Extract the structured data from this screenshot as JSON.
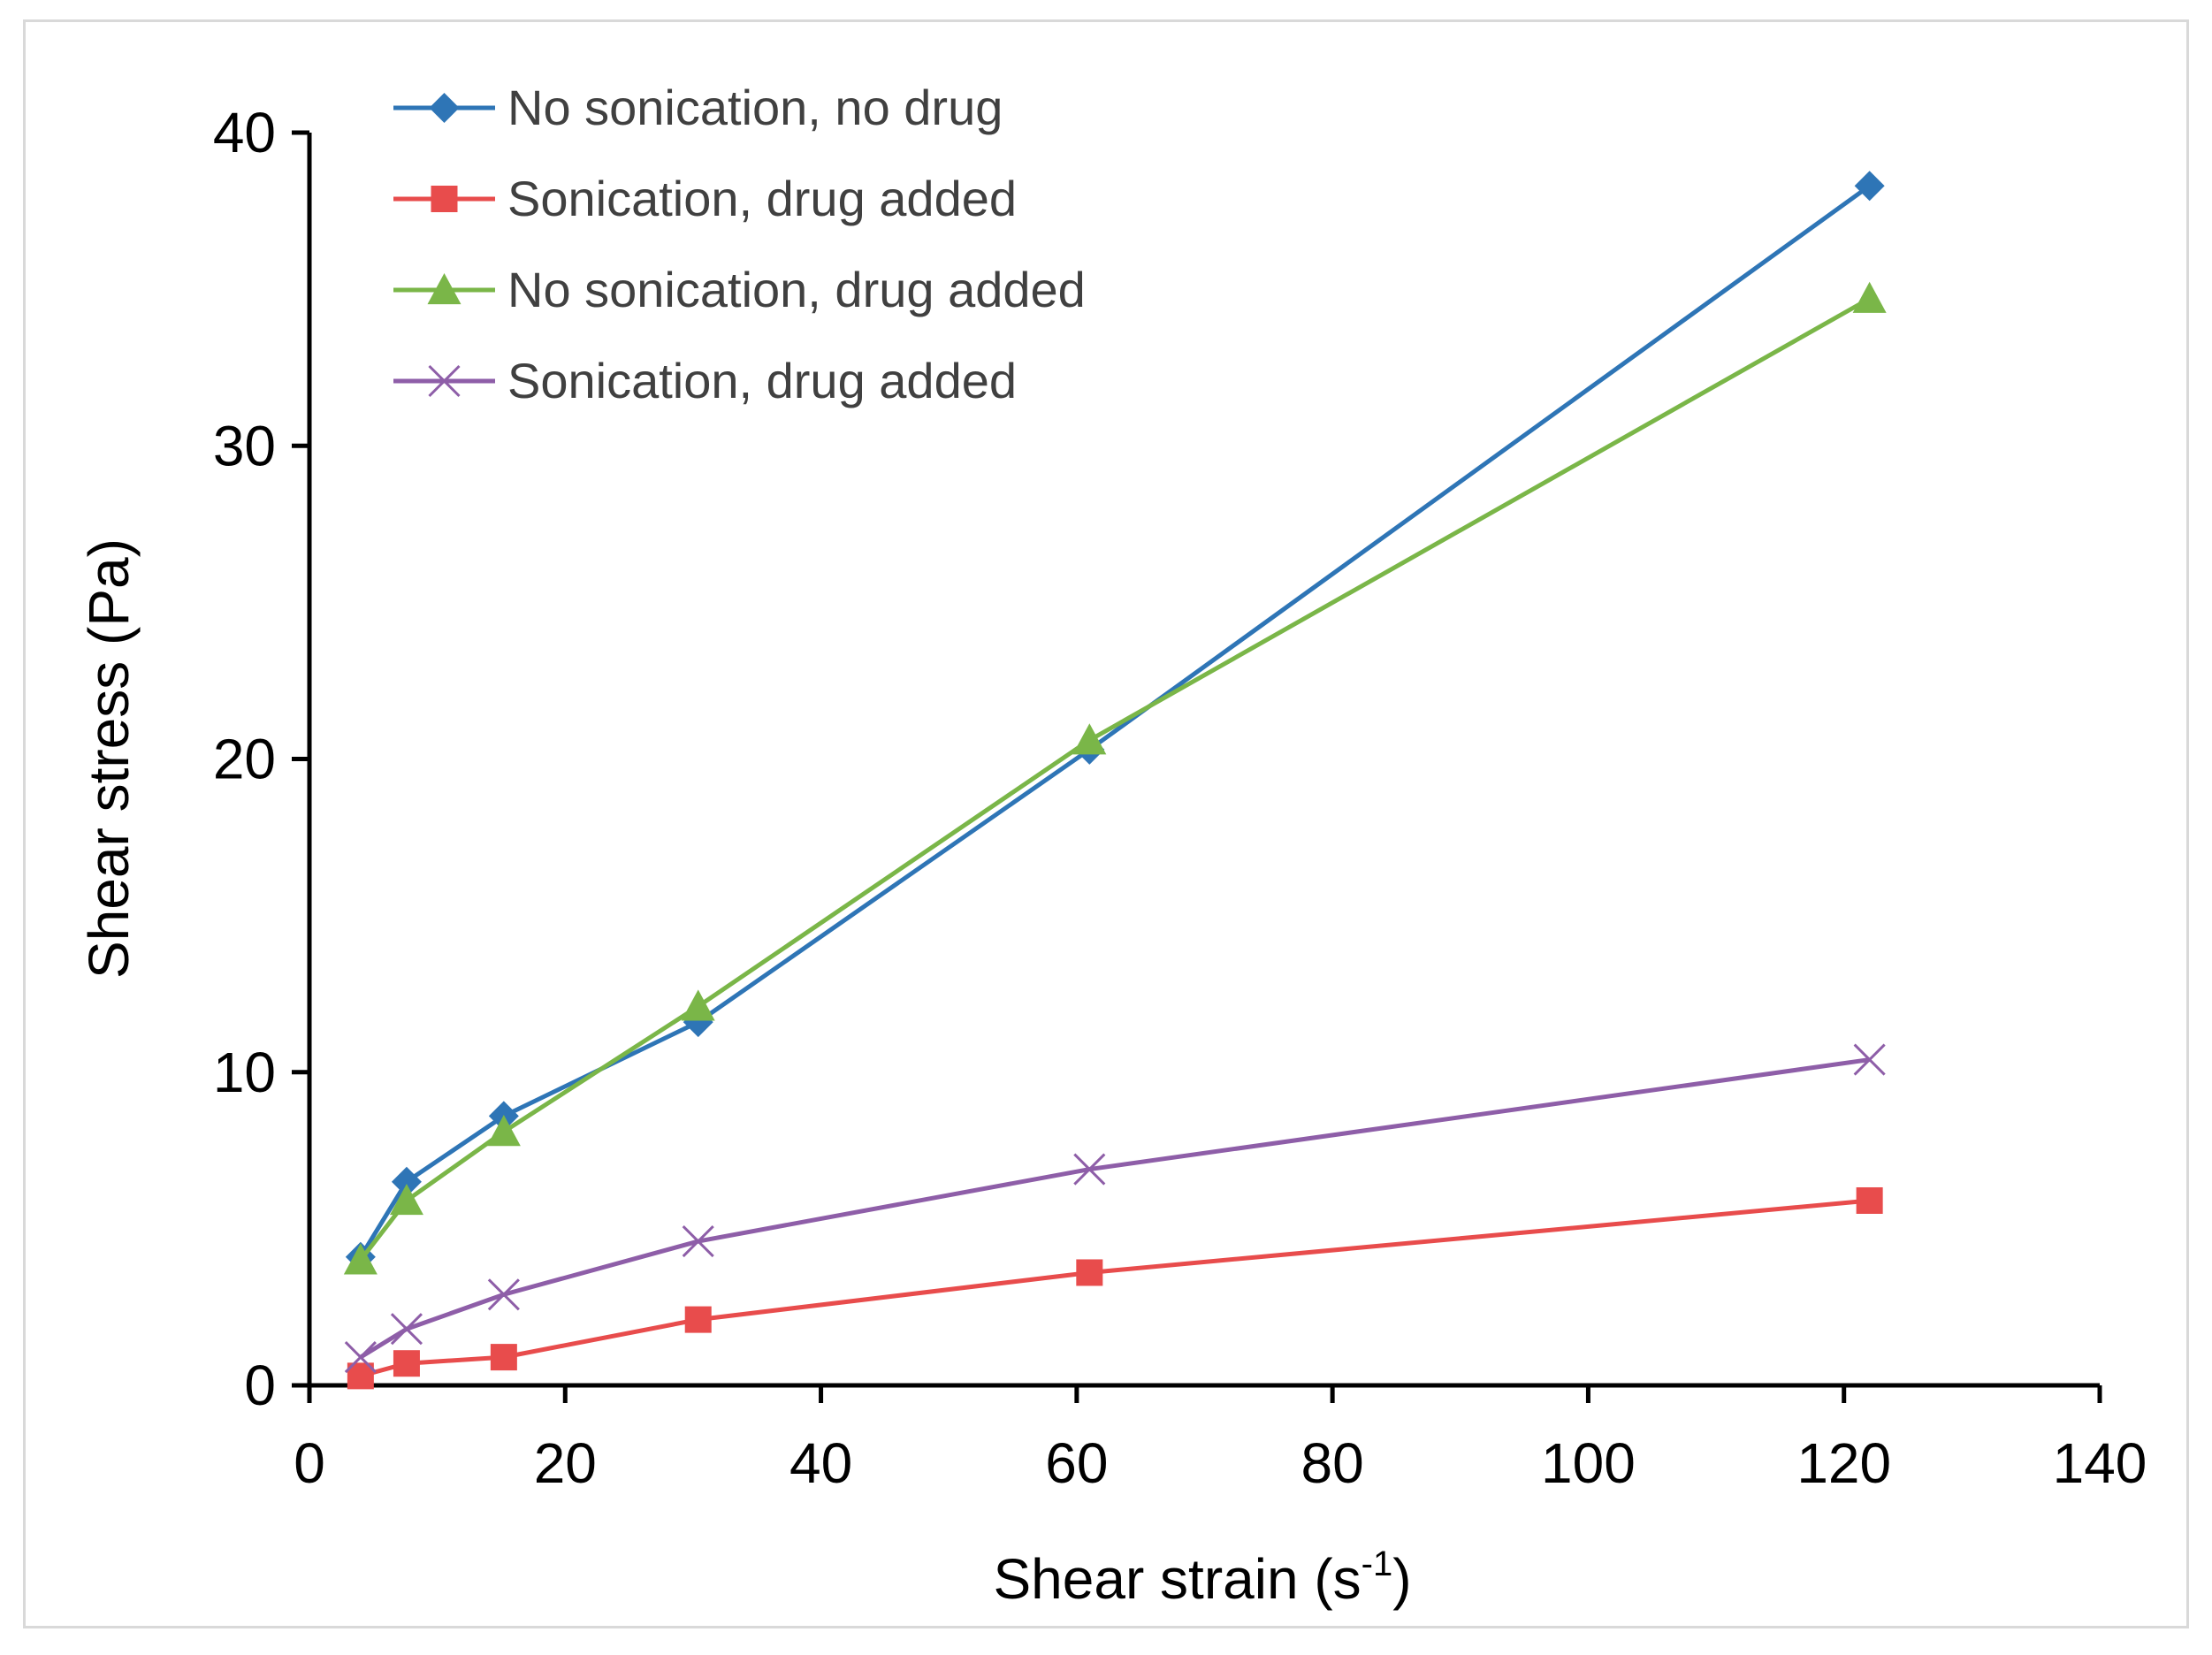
{
  "chart_data": {
    "type": "line",
    "title": "",
    "xlabel": "Shear strain (s",
    "xlabel_sup": "-1",
    "xlabel_close": ")",
    "ylabel": "Shear stress (Pa)",
    "xlim": [
      0,
      140
    ],
    "ylim": [
      0,
      40
    ],
    "xticks": [
      0,
      20,
      40,
      60,
      80,
      100,
      120,
      140
    ],
    "yticks": [
      0,
      10,
      20,
      30,
      40
    ],
    "grid": false,
    "legend_position": "top-left",
    "x": [
      4,
      7.6,
      15.2,
      30.4,
      61,
      122
    ],
    "series": [
      {
        "name": "No sonication, no drug",
        "color": "#2e75b6",
        "marker": "diamond",
        "values": [
          4.1,
          6.5,
          8.6,
          11.6,
          20.3,
          38.3
        ]
      },
      {
        "name": "Sonication, drug added",
        "color": "#e84c4c",
        "marker": "square",
        "values": [
          0.3,
          0.7,
          0.9,
          2.1,
          3.6,
          5.9
        ]
      },
      {
        "name": "No sonication, drug added",
        "color": "#7ab648",
        "marker": "triangle",
        "values": [
          4.0,
          5.9,
          8.1,
          12.1,
          20.6,
          34.7
        ]
      },
      {
        "name": "Sonication, drug added",
        "color": "#8e5ea8",
        "marker": "x",
        "values": [
          0.9,
          1.8,
          2.9,
          4.6,
          6.9,
          10.4
        ]
      }
    ]
  }
}
